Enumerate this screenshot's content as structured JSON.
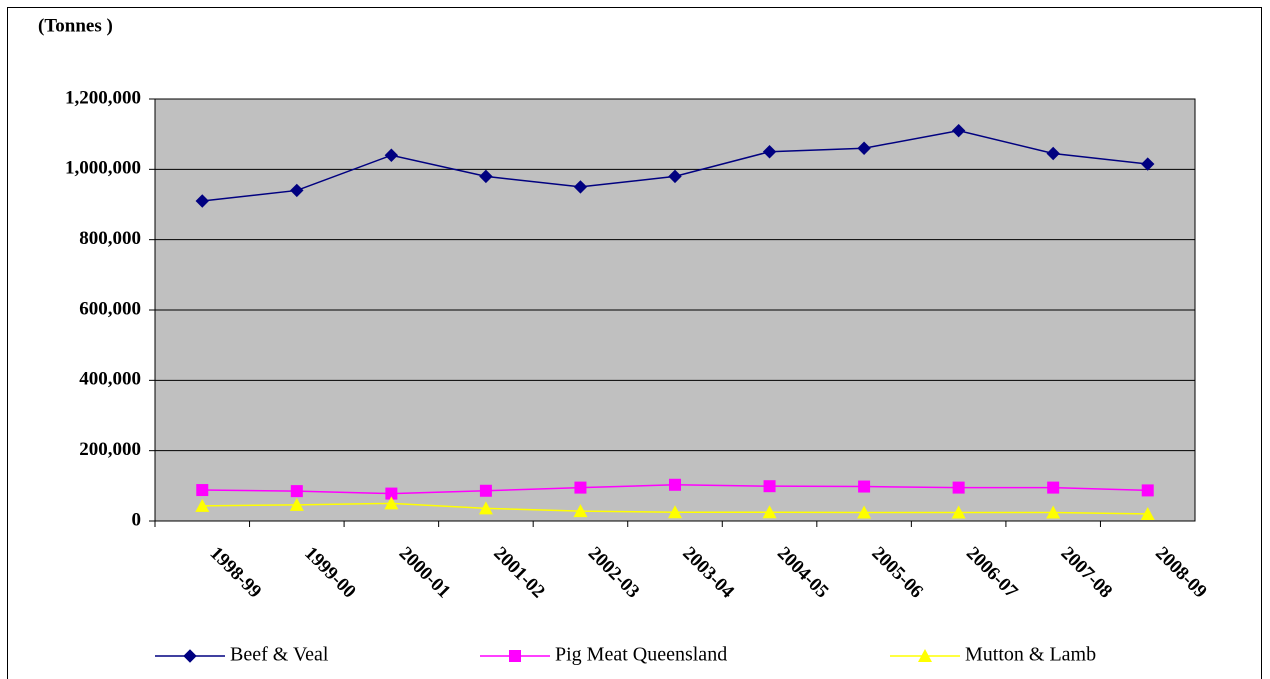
{
  "chart_data": {
    "type": "line",
    "y_label": "(Tonnes )",
    "categories": [
      "1998-99",
      "1999-00",
      "2000-01",
      "2001-02",
      "2002-03",
      "2003-04",
      "2004-05",
      "2005-06",
      "2006-07",
      "2007-08",
      "2008-09"
    ],
    "series": [
      {
        "name": "Beef & Veal",
        "color": "#000080",
        "marker": "diamond",
        "values": [
          910000,
          940000,
          1040000,
          980000,
          950000,
          980000,
          1050000,
          1060000,
          1110000,
          1045000,
          1015000
        ]
      },
      {
        "name": "Pig Meat Queensland",
        "color": "#ff00ff",
        "marker": "square",
        "values": [
          88000,
          85000,
          78000,
          86000,
          95000,
          103000,
          99000,
          98000,
          95000,
          95000,
          87000
        ]
      },
      {
        "name": "Mutton & Lamb",
        "color": "#ffff00",
        "marker": "triangle",
        "values": [
          43000,
          46000,
          50000,
          36000,
          28000,
          25000,
          25000,
          24000,
          24000,
          24000,
          20000
        ]
      }
    ],
    "ylim": [
      0,
      1200000
    ],
    "yticks": [
      0,
      {
        "value": 200000,
        "label": "200,000"
      },
      {
        "value": 400000,
        "label": "400,000"
      },
      {
        "value": 600000,
        "label": "600,000"
      },
      {
        "value": 800000,
        "label": "800,000"
      },
      {
        "value": 1000000,
        "label": "1,000,000"
      },
      {
        "value": 1200000,
        "label": "1,200,000"
      }
    ],
    "grid": true,
    "plot_background": "#c0c0c0",
    "legend": "bottom"
  }
}
